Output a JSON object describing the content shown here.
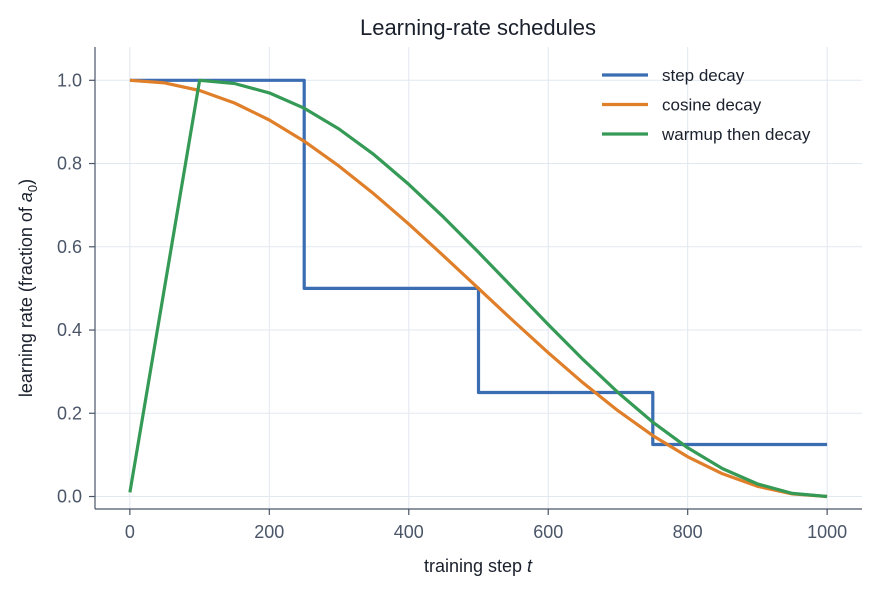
{
  "chart_data": {
    "type": "line",
    "title": "Learning-rate schedules",
    "xlabel": "training step",
    "xlabel_var": "t",
    "ylabel": "learning rate (fraction of ",
    "ylabel_var": "a",
    "ylabel_sub": "0",
    "ylabel_end": ")",
    "xlim": [
      -50,
      1050
    ],
    "ylim": [
      -0.03,
      1.08
    ],
    "xticks": [
      0,
      200,
      400,
      600,
      800,
      1000
    ],
    "xtick_labels": [
      "0",
      "200",
      "400",
      "600",
      "800",
      "1000"
    ],
    "yticks": [
      0.0,
      0.2,
      0.4,
      0.6,
      0.8,
      1.0
    ],
    "ytick_labels": [
      "0.0",
      "0.2",
      "0.4",
      "0.6",
      "0.8",
      "1.0"
    ],
    "grid": true,
    "legend_position": "top-right",
    "series": [
      {
        "name": "step decay",
        "color": "#3b6db3",
        "x": [
          0,
          250,
          250,
          500,
          500,
          750,
          750,
          1000
        ],
        "y": [
          1.0,
          1.0,
          0.5,
          0.5,
          0.25,
          0.25,
          0.125,
          0.125
        ]
      },
      {
        "name": "cosine decay",
        "color": "#e07f2a",
        "x": [
          0,
          50,
          100,
          150,
          200,
          250,
          300,
          350,
          400,
          450,
          500,
          550,
          600,
          650,
          700,
          750,
          800,
          850,
          900,
          950,
          1000
        ],
        "y": [
          1.0,
          0.9938,
          0.9755,
          0.9455,
          0.9045,
          0.8536,
          0.7939,
          0.727,
          0.6545,
          0.5782,
          0.5,
          0.4218,
          0.3455,
          0.273,
          0.2061,
          0.1464,
          0.0955,
          0.0545,
          0.0245,
          0.0062,
          0.0
        ]
      },
      {
        "name": "warmup then decay",
        "color": "#349a55",
        "x": [
          0,
          100,
          150,
          200,
          250,
          300,
          350,
          400,
          450,
          500,
          550,
          600,
          650,
          700,
          750,
          800,
          850,
          900,
          950,
          1000
        ],
        "y": [
          0.01,
          1.0,
          0.9924,
          0.9698,
          0.933,
          0.883,
          0.8214,
          0.75,
          0.671,
          0.5868,
          0.5,
          0.4132,
          0.329,
          0.25,
          0.1786,
          0.117,
          0.067,
          0.0302,
          0.0076,
          0.0
        ]
      }
    ]
  }
}
